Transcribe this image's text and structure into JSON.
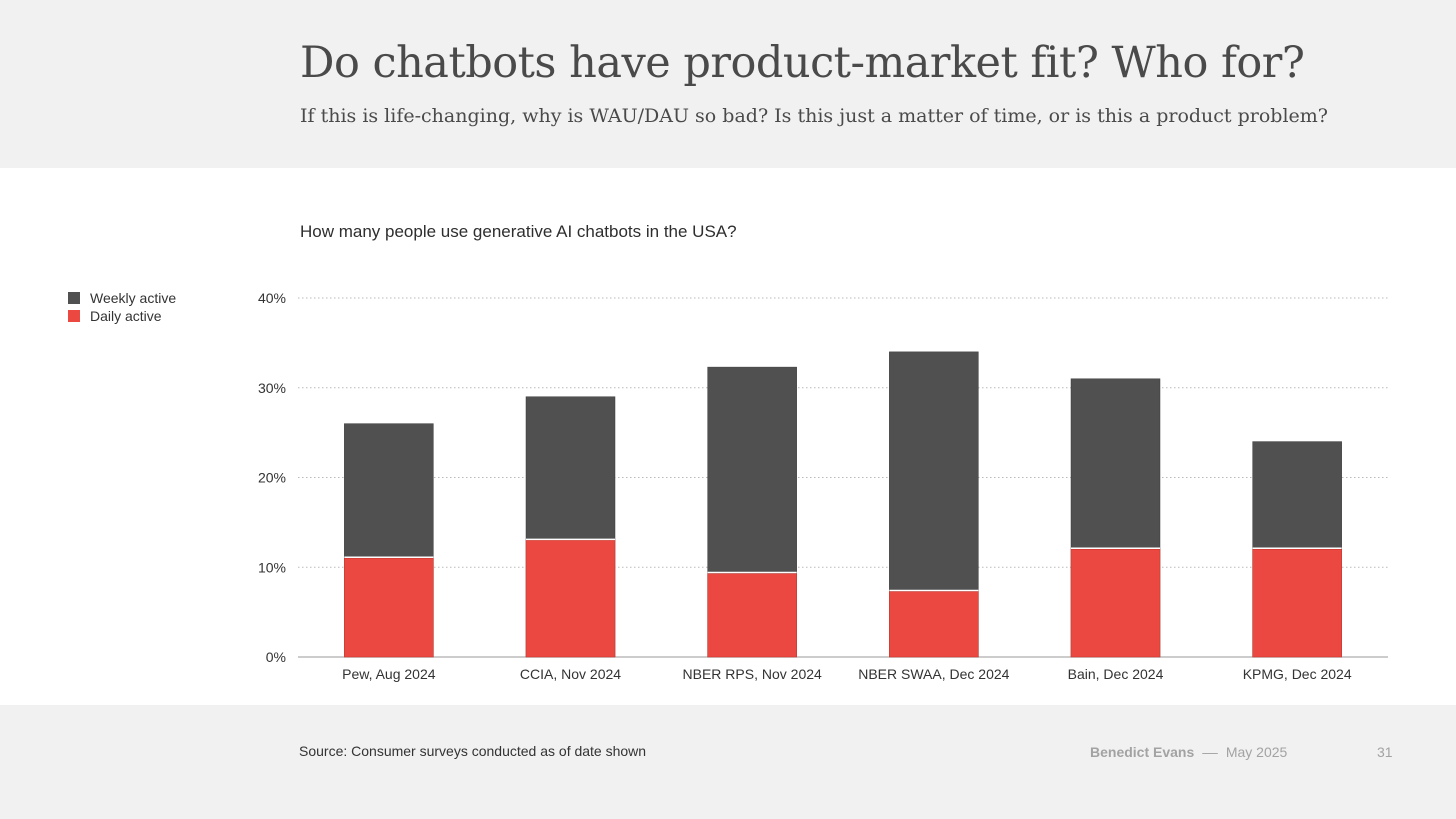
{
  "header": {
    "title": "Do chatbots have product-market fit? Who for?",
    "subtitle": "If this is life-changing, why is WAU/DAU so bad? Is this just a matter of time, or is this a product problem?"
  },
  "legend": {
    "weekly": "Weekly active",
    "daily": "Daily active"
  },
  "colors": {
    "weekly": "#505050",
    "daily": "#ea4840"
  },
  "chart_data": {
    "type": "bar",
    "stacked": false,
    "title": "How many people use generative AI chatbots in the USA?",
    "xlabel": "",
    "ylabel": "",
    "categories": [
      "Pew, Aug 2024",
      "CCIA, Nov 2024",
      "NBER RPS, Nov 2024",
      "NBER SWAA, Dec 2024",
      "Bain, Dec 2024",
      "KPMG, Dec 2024"
    ],
    "series": [
      {
        "name": "Weekly active",
        "values": [
          26,
          29,
          32.3,
          34,
          31,
          24
        ]
      },
      {
        "name": "Daily active",
        "values": [
          11,
          13,
          9.3,
          7.3,
          12,
          12
        ]
      }
    ],
    "ylim": [
      0,
      40
    ],
    "yticks": [
      0,
      10,
      20,
      30,
      40
    ],
    "ytick_labels": [
      "0%",
      "10%",
      "20%",
      "30%",
      "40%"
    ],
    "grid": true,
    "legend_position": "left"
  },
  "footer": {
    "source": "Source: Consumer surveys conducted as of date shown",
    "author": "Benedict Evans",
    "separator": "––",
    "date": "May 2025",
    "page": "31"
  }
}
